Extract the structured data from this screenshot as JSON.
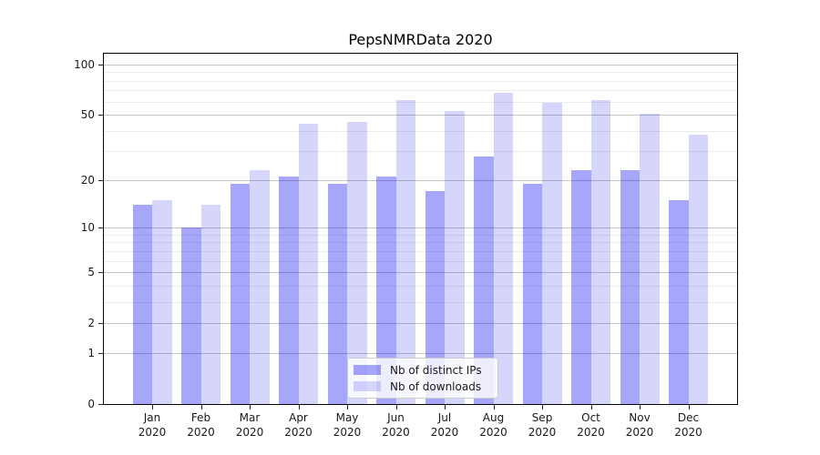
{
  "title": "PepsNMRData 2020",
  "chart_data": {
    "type": "bar",
    "title": "PepsNMRData 2020",
    "yscale": "log1p",
    "categories": [
      "Jan",
      "Feb",
      "Mar",
      "Apr",
      "May",
      "Jun",
      "Jul",
      "Aug",
      "Sep",
      "Oct",
      "Nov",
      "Dec"
    ],
    "x_tick_second_line": "2020",
    "series": [
      {
        "name": "Nb of distinct IPs",
        "color": "rgba(0,0,240,0.35)",
        "values": [
          14,
          10,
          19,
          21,
          19,
          21,
          17,
          28,
          19,
          23,
          23,
          15
        ]
      },
      {
        "name": "Nb of downloads",
        "color": "rgba(0,0,240,0.16)",
        "values": [
          15,
          14,
          23,
          44,
          45,
          61,
          53,
          68,
          59,
          61,
          51,
          38
        ]
      }
    ],
    "y_ticks": [
      0,
      1,
      2,
      5,
      10,
      20,
      50,
      100
    ],
    "y_minor_gridlines": [
      3,
      4,
      6,
      7,
      8,
      9,
      30,
      40,
      60,
      70,
      80,
      90
    ],
    "ylim": [
      0,
      116
    ],
    "grid": "horizontal",
    "legend_position": "inside lower center"
  },
  "colors": {
    "bar_distinct_ips": "rgba(0,0,240,0.35)",
    "bar_downloads": "rgba(0,0,240,0.16)",
    "grid_major": "#c6c6c6",
    "grid_minor": "#ececec",
    "axis": "#000000",
    "text": "#1a1a1a",
    "legend_bg": "rgba(255,255,255,0.8)",
    "legend_border": "#cccccc"
  }
}
